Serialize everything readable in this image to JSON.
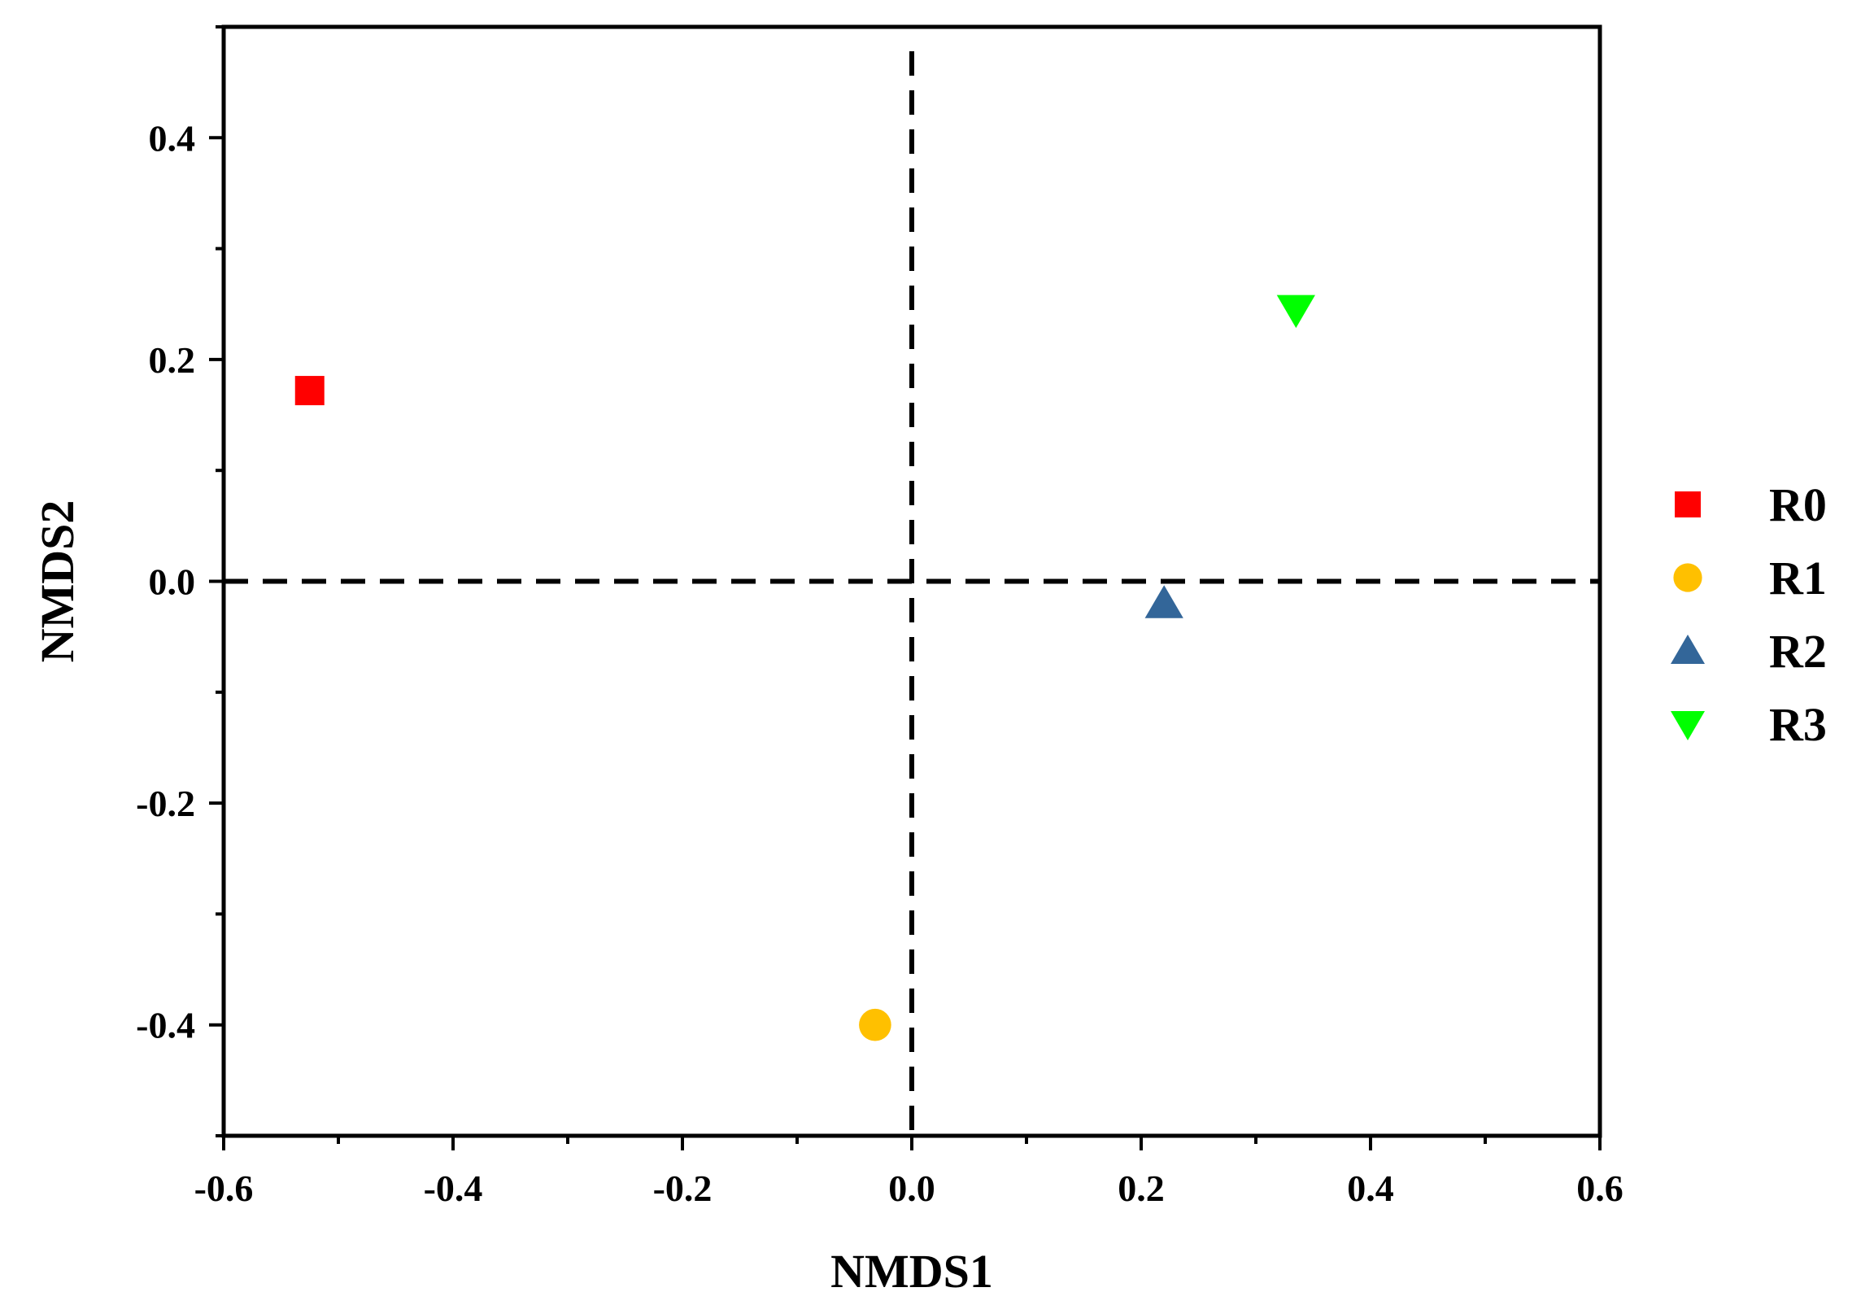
{
  "chart_data": {
    "type": "scatter",
    "title": "",
    "xlabel": "NMDS1",
    "ylabel": "NMDS2",
    "xlim": [
      -0.6,
      0.6
    ],
    "ylim": [
      -0.5,
      0.5
    ],
    "xticks": [
      "-0.6",
      "-0.4",
      "-0.2",
      "0.0",
      "0.2",
      "0.4",
      "0.6"
    ],
    "yticks": [
      "-0.4",
      "-0.2",
      "0.0",
      "0.2",
      "0.4"
    ],
    "grid": false,
    "reference_lines": {
      "x": 0,
      "y": 0,
      "style": "dashed"
    },
    "legend": {
      "placement": "right"
    },
    "series": [
      {
        "name": "R0",
        "marker": "square",
        "color": "#FF0000",
        "x": -0.525,
        "y": 0.172
      },
      {
        "name": "R1",
        "marker": "circle",
        "color": "#FFC000",
        "x": -0.032,
        "y": -0.4
      },
      {
        "name": "R2",
        "marker": "triangle-up",
        "color": "#336699",
        "x": 0.22,
        "y": -0.02
      },
      {
        "name": "R3",
        "marker": "triangle-down",
        "color": "#00FF00",
        "x": 0.335,
        "y": 0.245
      }
    ]
  }
}
